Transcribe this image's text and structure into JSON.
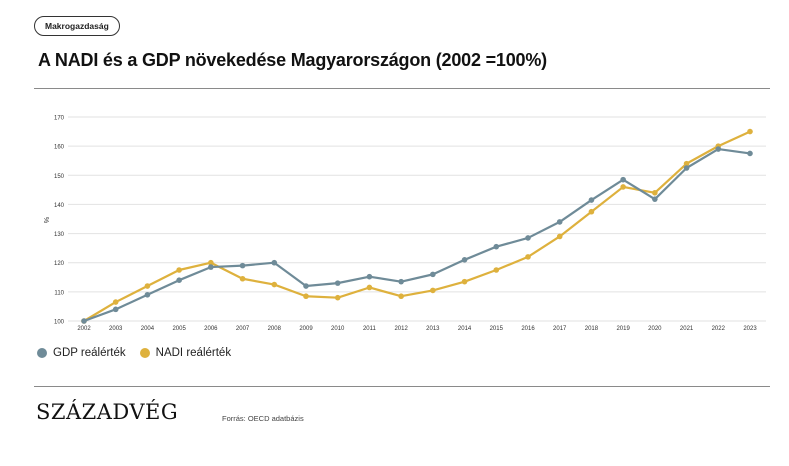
{
  "tag": "Makrogazdaság",
  "title": "A NADI és a GDP növekedése Magyarországon (2002 =100%)",
  "source": "Forrás: OECD adatbázis",
  "logo": "SZÁZADVÉG",
  "colors": {
    "gdp": "#6f8b98",
    "nadi": "#deb13d",
    "grid": "#e2e2e2",
    "rule": "#8a8a8a"
  },
  "chart_data": {
    "type": "line",
    "ylabel": "%",
    "ylim": [
      100,
      170
    ],
    "yticks": [
      "100",
      "110",
      "120",
      "130",
      "140",
      "150",
      "160",
      "170"
    ],
    "x": [
      "2002",
      "2003",
      "2004",
      "2005",
      "2006",
      "2007",
      "2008",
      "2009",
      "2010",
      "2011",
      "2012",
      "2013",
      "2014",
      "2015",
      "2016",
      "2017",
      "2018",
      "2019",
      "2020",
      "2021",
      "2022",
      "2023"
    ],
    "series": [
      {
        "name": "GDP reálérték",
        "color": "#6f8b98",
        "values": [
          100,
          104,
          109,
          114,
          118.5,
          119,
          120,
          112,
          113,
          115.2,
          113.5,
          116,
          121,
          125.5,
          128.5,
          134,
          141.5,
          148.5,
          141.8,
          152.5,
          159,
          157.5
        ]
      },
      {
        "name": "NADI reálérték",
        "color": "#deb13d",
        "values": [
          100,
          106.5,
          112,
          117.5,
          120,
          114.5,
          112.5,
          108.5,
          108,
          111.5,
          108.5,
          110.5,
          113.5,
          117.5,
          122,
          129,
          137.5,
          146,
          144,
          154,
          160,
          165
        ]
      }
    ],
    "grid": true,
    "legend": "bottom-left"
  }
}
